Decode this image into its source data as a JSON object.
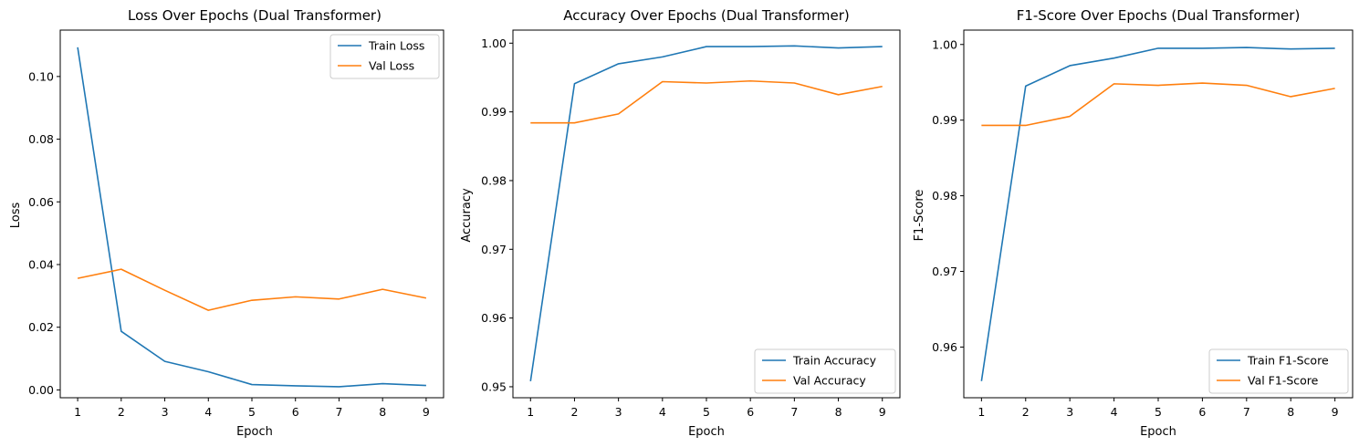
{
  "chart_data": [
    {
      "type": "line",
      "title": "Loss Over Epochs (Dual Transformer)",
      "xlabel": "Epoch",
      "ylabel": "Loss",
      "x": [
        1,
        2,
        3,
        4,
        5,
        6,
        7,
        8,
        9
      ],
      "xticks": [
        "1",
        "2",
        "3",
        "4",
        "5",
        "6",
        "7",
        "8",
        "9"
      ],
      "xlim": [
        0.6,
        9.4
      ],
      "ylim": [
        -0.0025,
        0.1148
      ],
      "yticks": [
        0.0,
        0.02,
        0.04,
        0.06,
        0.08,
        0.1
      ],
      "ytick_labels": [
        "0.00",
        "0.02",
        "0.04",
        "0.06",
        "0.08",
        "0.10"
      ],
      "grid": false,
      "legend_position": "upper right",
      "series": [
        {
          "name": "Train Loss",
          "color": "#1f77b4",
          "values": [
            0.1093,
            0.0187,
            0.0091,
            0.0058,
            0.0017,
            0.0013,
            0.001,
            0.002,
            0.0014
          ]
        },
        {
          "name": "Val Loss",
          "color": "#ff7f0e",
          "values": [
            0.0356,
            0.0385,
            0.0318,
            0.0254,
            0.0286,
            0.0297,
            0.029,
            0.0321,
            0.0293
          ]
        }
      ]
    },
    {
      "type": "line",
      "title": "Accuracy Over Epochs (Dual Transformer)",
      "xlabel": "Epoch",
      "ylabel": "Accuracy",
      "x": [
        1,
        2,
        3,
        4,
        5,
        6,
        7,
        8,
        9
      ],
      "xticks": [
        "1",
        "2",
        "3",
        "4",
        "5",
        "6",
        "7",
        "8",
        "9"
      ],
      "xlim": [
        0.6,
        9.4
      ],
      "ylim": [
        0.9484,
        1.0019
      ],
      "yticks": [
        0.95,
        0.96,
        0.97,
        0.98,
        0.99,
        1.0
      ],
      "ytick_labels": [
        "0.95",
        "0.96",
        "0.97",
        "0.98",
        "0.99",
        "1.00"
      ],
      "grid": false,
      "legend_position": "lower right",
      "series": [
        {
          "name": "Train Accuracy",
          "color": "#1f77b4",
          "values": [
            0.9508,
            0.9941,
            0.997,
            0.998,
            0.9995,
            0.9995,
            0.9996,
            0.9993,
            0.9995
          ]
        },
        {
          "name": "Val Accuracy",
          "color": "#ff7f0e",
          "values": [
            0.9884,
            0.9884,
            0.9897,
            0.9944,
            0.9942,
            0.9945,
            0.9942,
            0.9925,
            0.9937
          ]
        }
      ]
    },
    {
      "type": "line",
      "title": "F1-Score Over Epochs (Dual Transformer)",
      "xlabel": "Epoch",
      "ylabel": "F1-Score",
      "x": [
        1,
        2,
        3,
        4,
        5,
        6,
        7,
        8,
        9
      ],
      "xticks": [
        "1",
        "2",
        "3",
        "4",
        "5",
        "6",
        "7",
        "8",
        "9"
      ],
      "xlim": [
        0.6,
        9.4
      ],
      "ylim": [
        0.9533,
        1.0019
      ],
      "yticks": [
        0.96,
        0.97,
        0.98,
        0.99,
        1.0
      ],
      "ytick_labels": [
        "0.96",
        "0.97",
        "0.98",
        "0.99",
        "1.00"
      ],
      "grid": false,
      "legend_position": "lower right",
      "series": [
        {
          "name": "Train F1-Score",
          "color": "#1f77b4",
          "values": [
            0.9555,
            0.9945,
            0.9972,
            0.9982,
            0.9995,
            0.9995,
            0.9996,
            0.9994,
            0.9995
          ]
        },
        {
          "name": "Val F1-Score",
          "color": "#ff7f0e",
          "values": [
            0.9893,
            0.9893,
            0.9905,
            0.9948,
            0.9946,
            0.9949,
            0.9946,
            0.9931,
            0.9942
          ]
        }
      ]
    }
  ]
}
